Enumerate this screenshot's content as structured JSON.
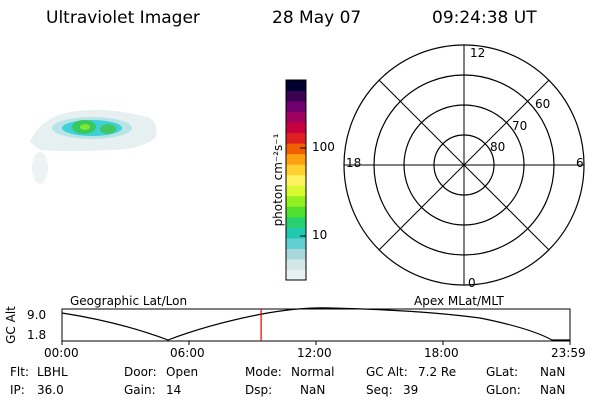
{
  "header": {
    "instrument": "Ultraviolet Imager",
    "date": "28 May 07",
    "time": "09:24:38 UT"
  },
  "colorbar": {
    "label": "photon cm⁻²s⁻¹",
    "ticks": [
      {
        "value": 10,
        "label": "10"
      },
      {
        "value": 100,
        "label": "100"
      }
    ],
    "colors": [
      "#e8f2f2",
      "#d4e8ea",
      "#a8d8dc",
      "#60d0d0",
      "#20c8b0",
      "#28d070",
      "#50e030",
      "#90f020",
      "#d8f830",
      "#fff060",
      "#ffd030",
      "#ffa010",
      "#f06000",
      "#e02020",
      "#c80040",
      "#a00060",
      "#700070",
      "#3c0050",
      "#000030"
    ]
  },
  "polar_plot": {
    "labels": {
      "top": "12",
      "bottom": "0",
      "left": "18",
      "right": "6"
    },
    "rings": [
      {
        "lat": 80,
        "label": "80"
      },
      {
        "lat": 70,
        "label": "70"
      },
      {
        "lat": 60,
        "label": "60"
      }
    ]
  },
  "timeline": {
    "ylabel": "GC Alt",
    "left_title": "Geographic Lat/Lon",
    "right_title": "Apex MLat/MLT",
    "ymin_label": "1.8",
    "ymax_label": "9.0",
    "xticks": [
      "00:00",
      "06:00",
      "12:00",
      "18:00",
      "23:59"
    ],
    "current_time_fraction": 0.392,
    "marker_color": "#e00000"
  },
  "info": {
    "flt_label": "Flt:",
    "flt_value": "LBHL",
    "ip_label": "IP:",
    "ip_value": "36.0",
    "door_label": "Door:",
    "door_value": "Open",
    "gain_label": "Gain:",
    "gain_value": "14",
    "mode_label": "Mode:",
    "mode_value": "Normal",
    "dsp_label": "Dsp:",
    "dsp_value": "NaN",
    "gcalt_label": "GC Alt:",
    "gcalt_value": "7.2 Re",
    "seq_label": "Seq:",
    "seq_value": "39",
    "glat_label": "GLat:",
    "glat_value": "NaN",
    "glon_label": "GLon:",
    "glon_value": "NaN"
  }
}
